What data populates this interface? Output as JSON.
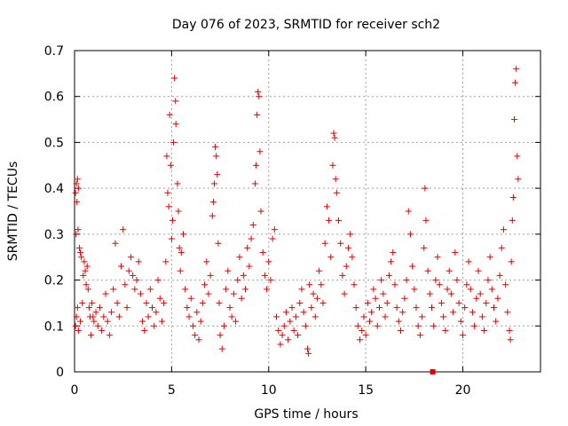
{
  "chart_data": {
    "type": "scatter",
    "title": "Day 076 of 2023, SRMTID for receiver sch2",
    "xlabel": "GPS time / hours",
    "ylabel": "SRMTID / TECUs",
    "xlim": [
      0,
      24
    ],
    "ylim": [
      0,
      0.7
    ],
    "xticks": [
      0,
      5,
      10,
      15,
      20
    ],
    "xtick_labels": [
      "0",
      "5",
      "10",
      "15",
      "20"
    ],
    "yticks": [
      0,
      0.1,
      0.2,
      0.3,
      0.4,
      0.5,
      0.6,
      0.7
    ],
    "ytick_labels": [
      "0",
      "0.1",
      "0.2",
      "0.3",
      "0.4",
      "0.5",
      "0.6",
      "0.7"
    ],
    "grid": true,
    "marker": "plus",
    "series_color": "#e00000",
    "marker_square": {
      "x": 18.45,
      "y": 0.0
    },
    "series": [
      {
        "name": "sch2",
        "points": [
          [
            0.05,
            0.39
          ],
          [
            0.1,
            0.41
          ],
          [
            0.15,
            0.42
          ],
          [
            0.12,
            0.37
          ],
          [
            0.2,
            0.4
          ],
          [
            0.08,
            0.3
          ],
          [
            0.18,
            0.31
          ],
          [
            0.25,
            0.27
          ],
          [
            0.3,
            0.26
          ],
          [
            0.35,
            0.25
          ],
          [
            0.05,
            0.1
          ],
          [
            0.1,
            0.12
          ],
          [
            0.15,
            0.14
          ],
          [
            0.2,
            0.09
          ],
          [
            0.3,
            0.11
          ],
          [
            0.4,
            0.15
          ],
          [
            0.45,
            0.21
          ],
          [
            0.5,
            0.24
          ],
          [
            0.55,
            0.22
          ],
          [
            0.6,
            0.19
          ],
          [
            0.65,
            0.23
          ],
          [
            0.7,
            0.18
          ],
          [
            0.75,
            0.14
          ],
          [
            0.8,
            0.12
          ],
          [
            0.85,
            0.08
          ],
          [
            0.9,
            0.15
          ],
          [
            0.95,
            0.12
          ],
          [
            1.0,
            0.11
          ],
          [
            1.1,
            0.13
          ],
          [
            1.2,
            0.1
          ],
          [
            1.3,
            0.14
          ],
          [
            1.4,
            0.09
          ],
          [
            1.5,
            0.12
          ],
          [
            1.6,
            0.17
          ],
          [
            1.7,
            0.11
          ],
          [
            1.8,
            0.08
          ],
          [
            1.9,
            0.13
          ],
          [
            2.0,
            0.18
          ],
          [
            2.1,
            0.28
          ],
          [
            2.2,
            0.15
          ],
          [
            2.3,
            0.12
          ],
          [
            2.4,
            0.23
          ],
          [
            2.5,
            0.31
          ],
          [
            2.6,
            0.19
          ],
          [
            2.7,
            0.14
          ],
          [
            2.8,
            0.22
          ],
          [
            2.9,
            0.25
          ],
          [
            3.0,
            0.21
          ],
          [
            3.1,
            0.18
          ],
          [
            3.2,
            0.2
          ],
          [
            3.3,
            0.24
          ],
          [
            3.4,
            0.17
          ],
          [
            3.5,
            0.11
          ],
          [
            3.6,
            0.09
          ],
          [
            3.7,
            0.15
          ],
          [
            3.8,
            0.12
          ],
          [
            3.9,
            0.18
          ],
          [
            4.0,
            0.14
          ],
          [
            4.1,
            0.1
          ],
          [
            4.2,
            0.13
          ],
          [
            4.3,
            0.2
          ],
          [
            4.4,
            0.16
          ],
          [
            4.5,
            0.11
          ],
          [
            4.6,
            0.15
          ],
          [
            4.7,
            0.24
          ],
          [
            4.75,
            0.47
          ],
          [
            4.8,
            0.39
          ],
          [
            4.85,
            0.36
          ],
          [
            4.9,
            0.56
          ],
          [
            4.95,
            0.45
          ],
          [
            5.0,
            0.29
          ],
          [
            5.05,
            0.33
          ],
          [
            5.1,
            0.5
          ],
          [
            5.15,
            0.64
          ],
          [
            5.2,
            0.59
          ],
          [
            5.22,
            0.54
          ],
          [
            5.3,
            0.41
          ],
          [
            5.35,
            0.35
          ],
          [
            5.4,
            0.27
          ],
          [
            5.45,
            0.22
          ],
          [
            5.5,
            0.26
          ],
          [
            5.6,
            0.3
          ],
          [
            5.7,
            0.18
          ],
          [
            5.8,
            0.14
          ],
          [
            5.9,
            0.12
          ],
          [
            6.0,
            0.16
          ],
          [
            6.1,
            0.1
          ],
          [
            6.2,
            0.08
          ],
          [
            6.3,
            0.13
          ],
          [
            6.4,
            0.07
          ],
          [
            6.5,
            0.11
          ],
          [
            6.6,
            0.15
          ],
          [
            6.7,
            0.19
          ],
          [
            6.8,
            0.24
          ],
          [
            6.9,
            0.17
          ],
          [
            7.0,
            0.21
          ],
          [
            7.1,
            0.34
          ],
          [
            7.15,
            0.37
          ],
          [
            7.2,
            0.41
          ],
          [
            7.25,
            0.49
          ],
          [
            7.3,
            0.47
          ],
          [
            7.35,
            0.43
          ],
          [
            7.4,
            0.28
          ],
          [
            7.45,
            0.15
          ],
          [
            7.5,
            0.08
          ],
          [
            7.6,
            0.05
          ],
          [
            7.7,
            0.1
          ],
          [
            7.8,
            0.18
          ],
          [
            7.9,
            0.22
          ],
          [
            8.0,
            0.14
          ],
          [
            8.1,
            0.12
          ],
          [
            8.2,
            0.17
          ],
          [
            8.3,
            0.11
          ],
          [
            8.4,
            0.2
          ],
          [
            8.5,
            0.25
          ],
          [
            8.6,
            0.16
          ],
          [
            8.7,
            0.21
          ],
          [
            8.8,
            0.18
          ],
          [
            8.9,
            0.27
          ],
          [
            9.0,
            0.23
          ],
          [
            9.1,
            0.29
          ],
          [
            9.2,
            0.32
          ],
          [
            9.3,
            0.41
          ],
          [
            9.35,
            0.45
          ],
          [
            9.4,
            0.56
          ],
          [
            9.45,
            0.61
          ],
          [
            9.5,
            0.6
          ],
          [
            9.55,
            0.48
          ],
          [
            9.6,
            0.35
          ],
          [
            9.7,
            0.26
          ],
          [
            9.8,
            0.21
          ],
          [
            9.9,
            0.18
          ],
          [
            10.0,
            0.24
          ],
          [
            10.1,
            0.2
          ],
          [
            10.2,
            0.29
          ],
          [
            10.3,
            0.31
          ],
          [
            10.4,
            0.12
          ],
          [
            10.5,
            0.09
          ],
          [
            10.6,
            0.06
          ],
          [
            10.7,
            0.08
          ],
          [
            10.8,
            0.1
          ],
          [
            10.9,
            0.13
          ],
          [
            11.0,
            0.07
          ],
          [
            11.1,
            0.11
          ],
          [
            11.2,
            0.14
          ],
          [
            11.3,
            0.09
          ],
          [
            11.4,
            0.12
          ],
          [
            11.5,
            0.08
          ],
          [
            11.6,
            0.15
          ],
          [
            11.7,
            0.18
          ],
          [
            11.8,
            0.13
          ],
          [
            11.9,
            0.1
          ],
          [
            12.0,
            0.05
          ],
          [
            12.05,
            0.04
          ],
          [
            12.1,
            0.19
          ],
          [
            12.2,
            0.14
          ],
          [
            12.3,
            0.17
          ],
          [
            12.4,
            0.12
          ],
          [
            12.5,
            0.16
          ],
          [
            12.6,
            0.22
          ],
          [
            12.7,
            0.19
          ],
          [
            12.8,
            0.15
          ],
          [
            12.9,
            0.28
          ],
          [
            13.0,
            0.36
          ],
          [
            13.1,
            0.33
          ],
          [
            13.2,
            0.25
          ],
          [
            13.3,
            0.45
          ],
          [
            13.35,
            0.52
          ],
          [
            13.4,
            0.51
          ],
          [
            13.45,
            0.42
          ],
          [
            13.5,
            0.39
          ],
          [
            13.6,
            0.33
          ],
          [
            13.7,
            0.28
          ],
          [
            13.8,
            0.21
          ],
          [
            13.9,
            0.17
          ],
          [
            14.0,
            0.23
          ],
          [
            14.1,
            0.27
          ],
          [
            14.2,
            0.3
          ],
          [
            14.3,
            0.25
          ],
          [
            14.4,
            0.19
          ],
          [
            14.5,
            0.14
          ],
          [
            14.6,
            0.1
          ],
          [
            14.7,
            0.07
          ],
          [
            14.8,
            0.09
          ],
          [
            14.9,
            0.12
          ],
          [
            15.0,
            0.08
          ],
          [
            15.1,
            0.15
          ],
          [
            15.2,
            0.11
          ],
          [
            15.3,
            0.13
          ],
          [
            15.4,
            0.18
          ],
          [
            15.5,
            0.16
          ],
          [
            15.6,
            0.1
          ],
          [
            15.7,
            0.14
          ],
          [
            15.8,
            0.2
          ],
          [
            15.9,
            0.17
          ],
          [
            16.0,
            0.12
          ],
          [
            16.1,
            0.15
          ],
          [
            16.2,
            0.21
          ],
          [
            16.3,
            0.24
          ],
          [
            16.4,
            0.26
          ],
          [
            16.5,
            0.19
          ],
          [
            16.6,
            0.14
          ],
          [
            16.7,
            0.11
          ],
          [
            16.8,
            0.09
          ],
          [
            16.9,
            0.13
          ],
          [
            17.0,
            0.16
          ],
          [
            17.1,
            0.2
          ],
          [
            17.2,
            0.35
          ],
          [
            17.3,
            0.3
          ],
          [
            17.4,
            0.23
          ],
          [
            17.5,
            0.18
          ],
          [
            17.6,
            0.14
          ],
          [
            17.7,
            0.1
          ],
          [
            17.8,
            0.08
          ],
          [
            17.9,
            0.12
          ],
          [
            18.0,
            0.27
          ],
          [
            18.05,
            0.4
          ],
          [
            18.1,
            0.33
          ],
          [
            18.2,
            0.22
          ],
          [
            18.3,
            0.17
          ],
          [
            18.4,
            0.14
          ],
          [
            18.5,
            0.1
          ],
          [
            18.6,
            0.2
          ],
          [
            18.7,
            0.25
          ],
          [
            18.8,
            0.19
          ],
          [
            18.9,
            0.15
          ],
          [
            19.0,
            0.12
          ],
          [
            19.1,
            0.09
          ],
          [
            19.2,
            0.18
          ],
          [
            19.3,
            0.22
          ],
          [
            19.4,
            0.17
          ],
          [
            19.5,
            0.13
          ],
          [
            19.6,
            0.26
          ],
          [
            19.7,
            0.2
          ],
          [
            19.8,
            0.15
          ],
          [
            19.9,
            0.11
          ],
          [
            20.0,
            0.08
          ],
          [
            20.1,
            0.14
          ],
          [
            20.2,
            0.19
          ],
          [
            20.3,
            0.24
          ],
          [
            20.4,
            0.18
          ],
          [
            20.5,
            0.13
          ],
          [
            20.6,
            0.1
          ],
          [
            20.7,
            0.16
          ],
          [
            20.8,
            0.22
          ],
          [
            20.9,
            0.17
          ],
          [
            21.0,
            0.12
          ],
          [
            21.1,
            0.09
          ],
          [
            21.2,
            0.15
          ],
          [
            21.3,
            0.2
          ],
          [
            21.4,
            0.25
          ],
          [
            21.5,
            0.18
          ],
          [
            21.6,
            0.14
          ],
          [
            21.7,
            0.11
          ],
          [
            21.8,
            0.16
          ],
          [
            21.9,
            0.21
          ],
          [
            22.0,
            0.27
          ],
          [
            22.1,
            0.31
          ],
          [
            22.2,
            0.19
          ],
          [
            22.3,
            0.13
          ],
          [
            22.4,
            0.09
          ],
          [
            22.45,
            0.07
          ],
          [
            22.5,
            0.24
          ],
          [
            22.55,
            0.33
          ],
          [
            22.6,
            0.38
          ],
          [
            22.65,
            0.55
          ],
          [
            22.7,
            0.63
          ],
          [
            22.75,
            0.66
          ],
          [
            22.8,
            0.47
          ],
          [
            22.85,
            0.42
          ]
        ]
      }
    ]
  }
}
